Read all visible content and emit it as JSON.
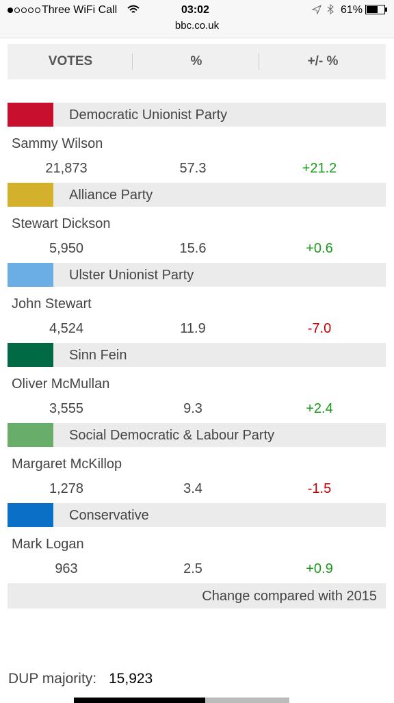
{
  "status_bar": {
    "carrier": "Three WiFi Call",
    "time": "03:02",
    "battery": "61%",
    "url": "bbc.co.uk"
  },
  "table": {
    "headers": [
      "VOTES",
      "%",
      "+/- %"
    ],
    "rows": [
      {
        "party": "Democratic Unionist Party",
        "color": "#c8102e",
        "candidate": "Sammy Wilson",
        "votes": "21,873",
        "percent": "57.3",
        "change": "+21.2"
      },
      {
        "party": "Alliance Party",
        "color": "#d4b12c",
        "candidate": "Stewart Dickson",
        "votes": "5,950",
        "percent": "15.6",
        "change": "+0.6"
      },
      {
        "party": "Ulster Unionist Party",
        "color": "#6aaee5",
        "candidate": "John Stewart",
        "votes": "4,524",
        "percent": "11.9",
        "change": "-7.0"
      },
      {
        "party": "Sinn Fein",
        "color": "#006a44",
        "candidate": "Oliver McMullan",
        "votes": "3,555",
        "percent": "9.3",
        "change": "+2.4"
      },
      {
        "party": "Social Democratic & Labour Party",
        "color": "#69ad6a",
        "candidate": "Margaret McKillop",
        "votes": "1,278",
        "percent": "3.4",
        "change": "-1.5"
      },
      {
        "party": "Conservative",
        "color": "#0a6fc7",
        "candidate": "Mark Logan",
        "votes": "963",
        "percent": "2.5",
        "change": "+0.9"
      }
    ],
    "note": "Change compared with 2015"
  },
  "majority": {
    "label": "DUP majority:",
    "value": "15,923"
  }
}
